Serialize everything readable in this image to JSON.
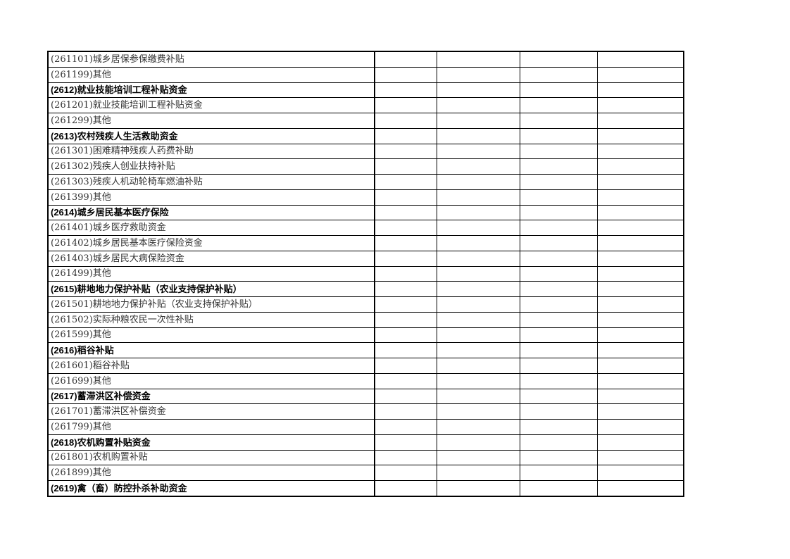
{
  "table": {
    "rows": [
      {
        "label": "(261101)城乡居保参保缴费补贴",
        "bold": false
      },
      {
        "label": "(261199)其他",
        "bold": false
      },
      {
        "label": "(2612)就业技能培训工程补贴资金",
        "bold": true
      },
      {
        "label": "(261201)就业技能培训工程补贴资金",
        "bold": false
      },
      {
        "label": "(261299)其他",
        "bold": false
      },
      {
        "label": "(2613)农村残疾人生活救助资金",
        "bold": true
      },
      {
        "label": "(261301)困难精神残疾人药费补助",
        "bold": false
      },
      {
        "label": "(261302)残疾人创业扶持补贴",
        "bold": false
      },
      {
        "label": "(261303)残疾人机动轮椅车燃油补贴",
        "bold": false
      },
      {
        "label": "(261399)其他",
        "bold": false
      },
      {
        "label": "(2614)城乡居民基本医疗保险",
        "bold": true
      },
      {
        "label": "(261401)城乡医疗救助资金",
        "bold": false
      },
      {
        "label": "(261402)城乡居民基本医疗保险资金",
        "bold": false
      },
      {
        "label": "(261403)城乡居民大病保险资金",
        "bold": false
      },
      {
        "label": "(261499)其他",
        "bold": false
      },
      {
        "label": "(2615)耕地地力保护补贴（农业支持保护补贴）",
        "bold": true
      },
      {
        "label": "(261501)耕地地力保护补贴（农业支持保护补贴）",
        "bold": false
      },
      {
        "label": "(261502)实际种粮农民一次性补贴",
        "bold": false
      },
      {
        "label": "(261599)其他",
        "bold": false
      },
      {
        "label": "(2616)稻谷补贴",
        "bold": true
      },
      {
        "label": "(261601)稻谷补贴",
        "bold": false
      },
      {
        "label": "(261699)其他",
        "bold": false
      },
      {
        "label": "(2617)蓄滞洪区补偿资金",
        "bold": true
      },
      {
        "label": "(261701)蓄滞洪区补偿资金",
        "bold": false
      },
      {
        "label": "(261799)其他",
        "bold": false
      },
      {
        "label": "(2618)农机购置补贴资金",
        "bold": true
      },
      {
        "label": "(261801)农机购置补贴",
        "bold": false
      },
      {
        "label": "(261899)其他",
        "bold": false
      },
      {
        "label": "(2619)禽（畜）防控扑杀补助资金",
        "bold": true
      }
    ]
  }
}
